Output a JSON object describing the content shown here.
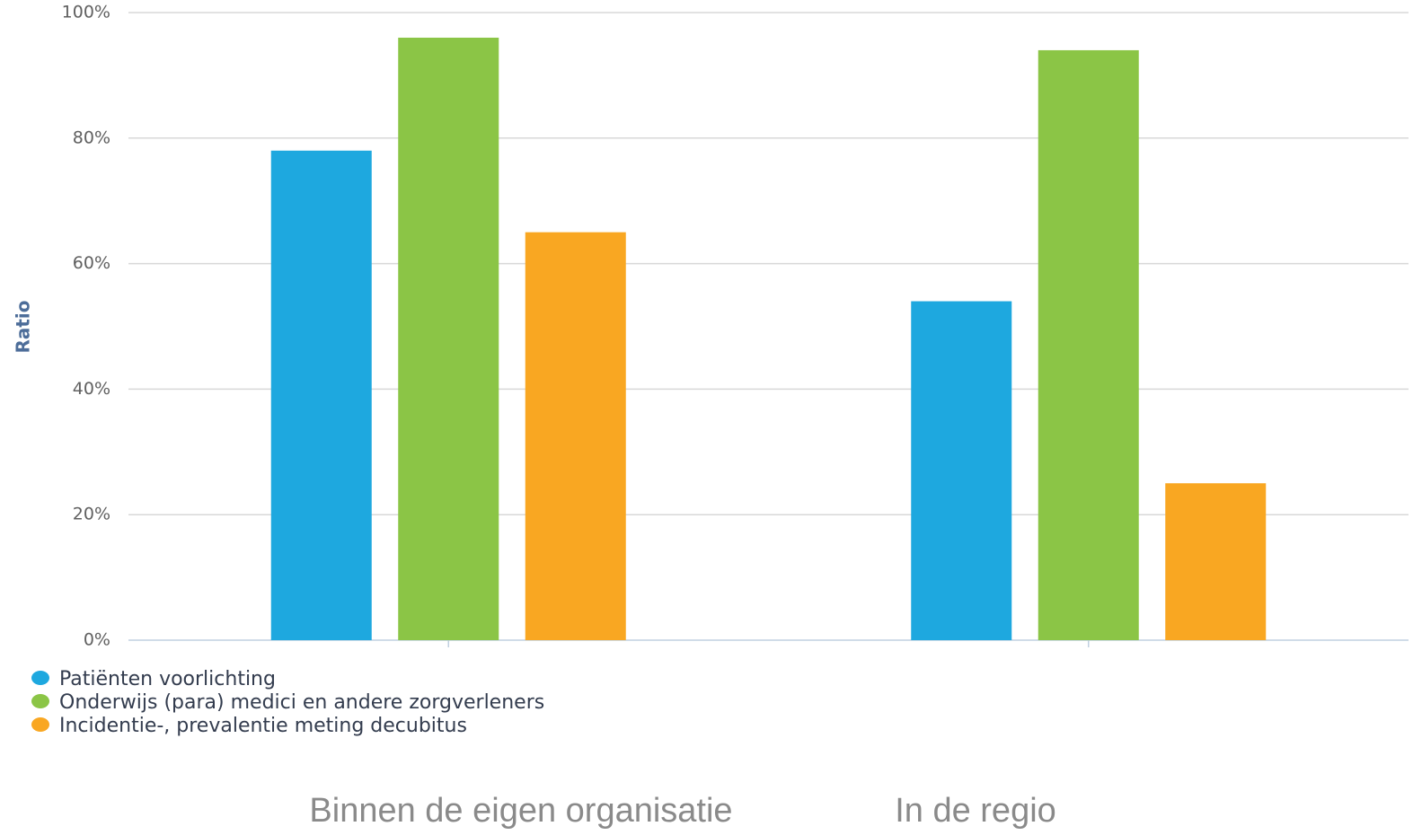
{
  "chart_data": {
    "type": "bar",
    "y_label": "Ratio",
    "categories": [
      "Binnen de eigen organisatie",
      "In de regio"
    ],
    "series": [
      {
        "name": "Patiënten voorlichting",
        "color": "#1ea8df",
        "values": [
          78,
          54
        ]
      },
      {
        "name": "Onderwijs (para) medici en andere zorgverleners",
        "color": "#8bc546",
        "values": [
          96,
          94
        ]
      },
      {
        "name": "Incidentie-, prevalentie meting decubitus",
        "color": "#f9a722",
        "values": [
          65,
          25
        ]
      }
    ],
    "ylim": [
      0,
      100
    ],
    "yticks": [
      {
        "value": 0,
        "label": "0%"
      },
      {
        "value": 20,
        "label": "20%"
      },
      {
        "value": 40,
        "label": "40%"
      },
      {
        "value": 60,
        "label": "60%"
      },
      {
        "value": 80,
        "label": "80%"
      },
      {
        "value": 100,
        "label": "100%"
      }
    ],
    "grid": true
  }
}
